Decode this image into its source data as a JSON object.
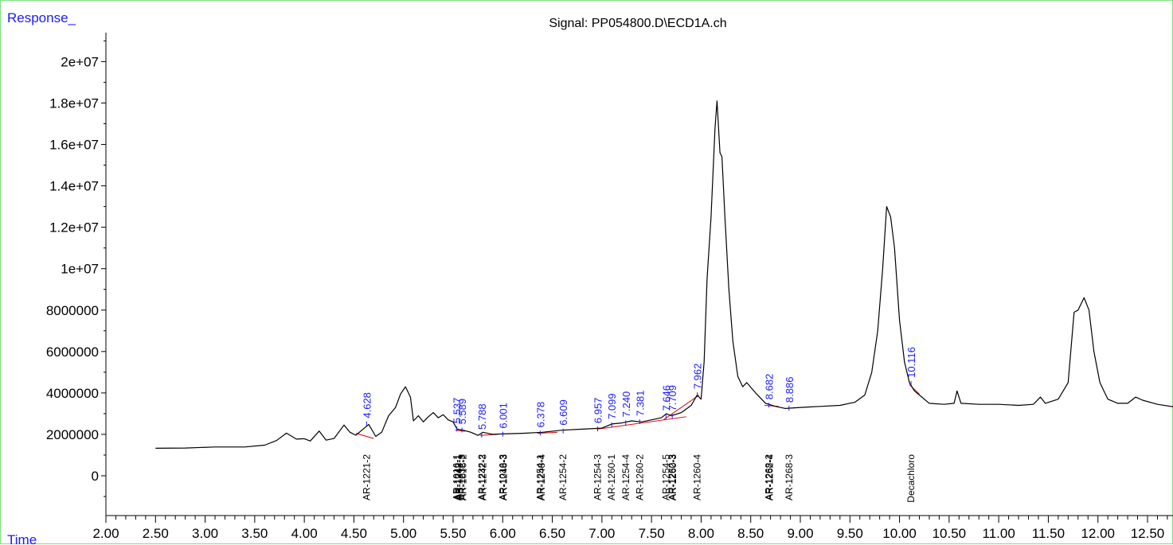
{
  "chart_data": {
    "type": "line",
    "title": "Signal: PP054800.D\\ECD1A.ch",
    "ylabel": "Response_",
    "xlabel": "Time",
    "xlim": [
      2.0,
      12.95
    ],
    "ylim": [
      -2000000,
      21000000
    ],
    "x_ticks": [
      "2.00",
      "2.50",
      "3.00",
      "3.50",
      "4.00",
      "4.50",
      "5.00",
      "5.50",
      "6.00",
      "6.50",
      "7.00",
      "7.50",
      "8.00",
      "8.50",
      "9.00",
      "9.50",
      "10.00",
      "10.50",
      "11.00",
      "11.50",
      "12.00",
      "12.50"
    ],
    "y_ticks": [
      {
        "value": 0,
        "label": "0"
      },
      {
        "value": 2000000,
        "label": "2000000"
      },
      {
        "value": 4000000,
        "label": "4000000"
      },
      {
        "value": 6000000,
        "label": "6000000"
      },
      {
        "value": 8000000,
        "label": "8000000"
      },
      {
        "value": 10000000,
        "label": "1e+07"
      },
      {
        "value": 12000000,
        "label": "1.2e+07"
      },
      {
        "value": 14000000,
        "label": "1.4e+07"
      },
      {
        "value": 16000000,
        "label": "1.6e+07"
      },
      {
        "value": 18000000,
        "label": "1.8e+07"
      },
      {
        "value": 20000000,
        "label": "2e+07"
      }
    ],
    "series": [
      {
        "color": "#000000",
        "points": [
          [
            2.5,
            1330000
          ],
          [
            2.8,
            1340000
          ],
          [
            3.1,
            1390000
          ],
          [
            3.4,
            1390000
          ],
          [
            3.6,
            1480000
          ],
          [
            3.72,
            1700000
          ],
          [
            3.82,
            2060000
          ],
          [
            3.92,
            1770000
          ],
          [
            4.0,
            1790000
          ],
          [
            4.06,
            1680000
          ],
          [
            4.15,
            2160000
          ],
          [
            4.22,
            1720000
          ],
          [
            4.3,
            1800000
          ],
          [
            4.4,
            2450000
          ],
          [
            4.46,
            2100000
          ],
          [
            4.52,
            1960000
          ],
          [
            4.58,
            2200000
          ],
          [
            4.65,
            2480000
          ],
          [
            4.72,
            1900000
          ],
          [
            4.78,
            2100000
          ],
          [
            4.85,
            2900000
          ],
          [
            4.92,
            3300000
          ],
          [
            4.97,
            3950000
          ],
          [
            5.02,
            4300000
          ],
          [
            5.07,
            3800000
          ],
          [
            5.1,
            2650000
          ],
          [
            5.15,
            2900000
          ],
          [
            5.2,
            2600000
          ],
          [
            5.25,
            2850000
          ],
          [
            5.3,
            3050000
          ],
          [
            5.35,
            2800000
          ],
          [
            5.4,
            2950000
          ],
          [
            5.45,
            2700000
          ],
          [
            5.5,
            2600000
          ],
          [
            5.54,
            2250000
          ],
          [
            5.6,
            2200000
          ],
          [
            5.68,
            2100000
          ],
          [
            5.75,
            1950000
          ],
          [
            5.8,
            2100000
          ],
          [
            5.9,
            2000000
          ],
          [
            6.0,
            2020000
          ],
          [
            6.2,
            2050000
          ],
          [
            6.4,
            2100000
          ],
          [
            6.6,
            2200000
          ],
          [
            6.8,
            2250000
          ],
          [
            7.0,
            2300000
          ],
          [
            7.1,
            2500000
          ],
          [
            7.2,
            2550000
          ],
          [
            7.3,
            2650000
          ],
          [
            7.4,
            2600000
          ],
          [
            7.5,
            2700000
          ],
          [
            7.6,
            2800000
          ],
          [
            7.65,
            3000000
          ],
          [
            7.7,
            2900000
          ],
          [
            7.8,
            3050000
          ],
          [
            7.9,
            3400000
          ],
          [
            7.96,
            3900000
          ],
          [
            8.0,
            3700000
          ],
          [
            8.03,
            5500000
          ],
          [
            8.06,
            9500000
          ],
          [
            8.1,
            12500000
          ],
          [
            8.14,
            16800000
          ],
          [
            8.16,
            18100000
          ],
          [
            8.19,
            15600000
          ],
          [
            8.21,
            15400000
          ],
          [
            8.24,
            12500000
          ],
          [
            8.28,
            9000000
          ],
          [
            8.32,
            6500000
          ],
          [
            8.37,
            4800000
          ],
          [
            8.42,
            4300000
          ],
          [
            8.46,
            4500000
          ],
          [
            8.55,
            4000000
          ],
          [
            8.65,
            3500000
          ],
          [
            8.75,
            3350000
          ],
          [
            8.85,
            3250000
          ],
          [
            9.0,
            3300000
          ],
          [
            9.2,
            3350000
          ],
          [
            9.4,
            3400000
          ],
          [
            9.55,
            3550000
          ],
          [
            9.65,
            3900000
          ],
          [
            9.72,
            5000000
          ],
          [
            9.78,
            7000000
          ],
          [
            9.83,
            10000000
          ],
          [
            9.87,
            13000000
          ],
          [
            9.91,
            12500000
          ],
          [
            9.95,
            11000000
          ],
          [
            10.0,
            7500000
          ],
          [
            10.05,
            5500000
          ],
          [
            10.1,
            4500000
          ],
          [
            10.15,
            4100000
          ],
          [
            10.2,
            3900000
          ],
          [
            10.3,
            3500000
          ],
          [
            10.45,
            3450000
          ],
          [
            10.55,
            3500000
          ],
          [
            10.58,
            4100000
          ],
          [
            10.62,
            3500000
          ],
          [
            10.8,
            3450000
          ],
          [
            11.0,
            3450000
          ],
          [
            11.2,
            3400000
          ],
          [
            11.35,
            3450000
          ],
          [
            11.42,
            3800000
          ],
          [
            11.47,
            3500000
          ],
          [
            11.6,
            3700000
          ],
          [
            11.7,
            4500000
          ],
          [
            11.76,
            7900000
          ],
          [
            11.8,
            8000000
          ],
          [
            11.86,
            8600000
          ],
          [
            11.91,
            8000000
          ],
          [
            11.96,
            6000000
          ],
          [
            12.02,
            4500000
          ],
          [
            12.1,
            3700000
          ],
          [
            12.2,
            3500000
          ],
          [
            12.3,
            3500000
          ],
          [
            12.38,
            3800000
          ],
          [
            12.45,
            3650000
          ],
          [
            12.6,
            3450000
          ],
          [
            12.8,
            3300000
          ],
          [
            12.95,
            3250000
          ]
        ]
      }
    ],
    "integration_baselines": [
      [
        [
          4.52,
          2050000
        ],
        [
          4.7,
          1800000
        ]
      ],
      [
        [
          5.52,
          2200000
        ],
        [
          5.62,
          2150000
        ]
      ],
      [
        [
          5.77,
          1950000
        ],
        [
          5.95,
          2000000
        ]
      ],
      [
        [
          6.35,
          2050000
        ],
        [
          6.55,
          2100000
        ]
      ],
      [
        [
          6.95,
          2250000
        ],
        [
          7.85,
          2850000
        ]
      ],
      [
        [
          7.62,
          2700000
        ],
        [
          7.98,
          3900000
        ]
      ],
      [
        [
          8.64,
          3400000
        ],
        [
          8.78,
          3350000
        ]
      ],
      [
        [
          10.1,
          4400000
        ],
        [
          10.2,
          3950000
        ]
      ]
    ],
    "peak_labels": [
      {
        "x": 4.628,
        "y": 2550000,
        "label": "4.628"
      },
      {
        "x": 5.537,
        "y": 2300000,
        "label": "5.537"
      },
      {
        "x": 5.589,
        "y": 2250000,
        "label": "5.589"
      },
      {
        "x": 5.788,
        "y": 2000000,
        "label": "5.788"
      },
      {
        "x": 6.001,
        "y": 2050000,
        "label": "6.001"
      },
      {
        "x": 6.378,
        "y": 2100000,
        "label": "6.378"
      },
      {
        "x": 6.609,
        "y": 2200000,
        "label": "6.609"
      },
      {
        "x": 6.957,
        "y": 2300000,
        "label": "6.957"
      },
      {
        "x": 7.099,
        "y": 2500000,
        "label": "7.099"
      },
      {
        "x": 7.24,
        "y": 2600000,
        "label": "7.240"
      },
      {
        "x": 7.381,
        "y": 2650000,
        "label": "7.381"
      },
      {
        "x": 7.646,
        "y": 2900000,
        "label": "7.646"
      },
      {
        "x": 7.709,
        "y": 2900000,
        "label": "7.709"
      },
      {
        "x": 7.962,
        "y": 3950000,
        "label": "7.962"
      },
      {
        "x": 8.682,
        "y": 3450000,
        "label": "8.682"
      },
      {
        "x": 8.886,
        "y": 3300000,
        "label": "8.886"
      },
      {
        "x": 10.116,
        "y": 4500000,
        "label": "10.116"
      }
    ],
    "compound_labels": [
      {
        "x": 4.628,
        "label": "AR-1221-2"
      },
      {
        "x": 5.537,
        "label": "AR-1016-1"
      },
      {
        "x": 5.55,
        "label": "AR-1242-1"
      },
      {
        "x": 5.56,
        "label": "AR-1248-1"
      },
      {
        "x": 5.589,
        "label": "AR-1232-3"
      },
      {
        "x": 5.6,
        "label": "AR-1016-2"
      },
      {
        "x": 5.788,
        "label": "AR-1232-2"
      },
      {
        "x": 5.8,
        "label": "AR-1242-3"
      },
      {
        "x": 6.001,
        "label": "AR-1016-3"
      },
      {
        "x": 6.01,
        "label": "AR-1248-3"
      },
      {
        "x": 6.378,
        "label": "AR-1254-1"
      },
      {
        "x": 6.39,
        "label": "AR-1248-4"
      },
      {
        "x": 6.609,
        "label": "AR-1254-2"
      },
      {
        "x": 6.957,
        "label": "AR-1254-3"
      },
      {
        "x": 7.099,
        "label": "AR-1260-1"
      },
      {
        "x": 7.24,
        "label": "AR-1254-4"
      },
      {
        "x": 7.381,
        "label": "AR-1260-2"
      },
      {
        "x": 7.646,
        "label": "AR-1254-5"
      },
      {
        "x": 7.709,
        "label": "AR-1262-3"
      },
      {
        "x": 7.715,
        "label": "AR-1260-3"
      },
      {
        "x": 7.962,
        "label": "AR-1260-4"
      },
      {
        "x": 8.682,
        "label": "AR-1268-2"
      },
      {
        "x": 8.69,
        "label": "AR-1262-4"
      },
      {
        "x": 8.886,
        "label": "AR-1268-3"
      },
      {
        "x": 10.116,
        "label": "Decachloro"
      }
    ]
  }
}
